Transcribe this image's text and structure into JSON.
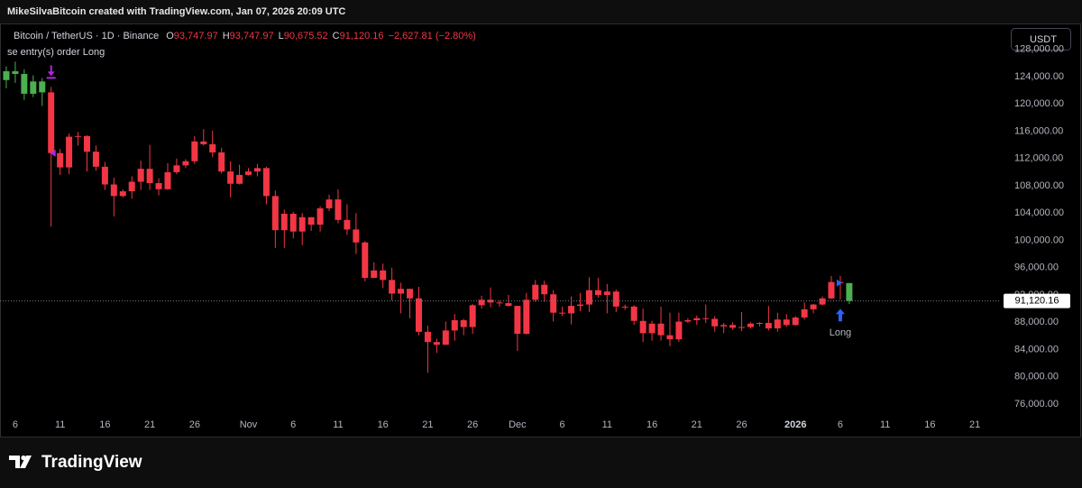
{
  "chart_data": {
    "type": "candlestick",
    "author_line": "MikeSilvaBitcoin created with TradingView.com, Jan 07, 2026 20:09 UTC",
    "header": {
      "symbol": "Bitcoin / TetherUS · 1D · Binance",
      "ohlc": [
        {
          "key": "O",
          "value": "93,747.97"
        },
        {
          "key": "H",
          "value": "93,747.97"
        },
        {
          "key": "L",
          "value": "90,675.52"
        },
        {
          "key": "C",
          "value": "91,120.16"
        }
      ],
      "change": "−2,627.81 (−2.80%)"
    },
    "strategy_text": "se entry(s) order Long",
    "signal_label": "Long",
    "currency": "USDT",
    "brand": "TradingView",
    "categories": [
      null,
      "6",
      null,
      null,
      null,
      null,
      "11",
      null,
      null,
      null,
      null,
      "16",
      null,
      null,
      null,
      null,
      "21",
      null,
      null,
      null,
      null,
      "26",
      null,
      null,
      null,
      null,
      null,
      "Nov",
      null,
      null,
      null,
      null,
      "6",
      null,
      null,
      null,
      null,
      "11",
      null,
      null,
      null,
      null,
      "16",
      null,
      null,
      null,
      null,
      "21",
      null,
      null,
      null,
      null,
      "26",
      null,
      null,
      null,
      null,
      "Dec",
      null,
      null,
      null,
      null,
      "6",
      null,
      null,
      null,
      null,
      "11",
      null,
      null,
      null,
      null,
      "16",
      null,
      null,
      null,
      null,
      "21",
      null,
      null,
      null,
      null,
      "26",
      null,
      null,
      null,
      null,
      null,
      "2026",
      null,
      null,
      null,
      null,
      "6",
      null,
      null,
      null,
      null,
      "11",
      null,
      null,
      null,
      null,
      "16",
      null,
      null,
      null,
      null,
      "21",
      null,
      null
    ],
    "open": [
      123500,
      124800,
      124400,
      121500,
      123300,
      121700,
      112800,
      110700,
      115200,
      115300,
      113000,
      110800,
      108200,
      106500,
      107200,
      108600,
      110500,
      108400,
      107500,
      110000,
      111000,
      111600,
      114500,
      114100,
      112900,
      110100,
      108300,
      109600,
      110100,
      110600,
      106500,
      101500,
      103900,
      101300,
      103400,
      102300,
      104700,
      106000,
      103000,
      101600,
      99700,
      94500,
      95600,
      94200,
      92200,
      92900,
      91500,
      86600,
      85100,
      84700,
      86800,
      88300,
      87300,
      90500,
      91300,
      90900,
      90800,
      90400,
      86300,
      91300,
      93500,
      92100,
      89400,
      89300,
      90400,
      90600,
      92700,
      92000,
      92500,
      90300,
      90300,
      88200,
      86400,
      87800,
      86100,
      85500,
      88100,
      88300,
      88600,
      88500,
      87400,
      87600,
      87200,
      87300,
      87800,
      87900,
      87100,
      88400,
      87600,
      88700,
      89900,
      90600,
      91500,
      93900,
      93747.97,
      null,
      null,
      null,
      null,
      null,
      null,
      null,
      null,
      null,
      null,
      null,
      null,
      null,
      null,
      null,
      null
    ],
    "high": [
      125500,
      126200,
      125100,
      124200,
      123800,
      122500,
      113400,
      115700,
      115900,
      115400,
      113900,
      111500,
      109200,
      107500,
      109400,
      111700,
      114000,
      109100,
      111300,
      112000,
      111900,
      115300,
      116300,
      116100,
      113600,
      111600,
      111100,
      110600,
      111200,
      110800,
      107300,
      104500,
      104200,
      104000,
      103400,
      105000,
      106700,
      107500,
      105300,
      104000,
      99900,
      96800,
      96600,
      96000,
      93800,
      92900,
      93200,
      87500,
      85600,
      88100,
      89200,
      88500,
      90700,
      91900,
      93100,
      91200,
      92000,
      90400,
      92300,
      94200,
      94100,
      92700,
      90300,
      91800,
      92300,
      94600,
      94500,
      93600,
      92800,
      90600,
      90500,
      90000,
      88200,
      90300,
      89400,
      89400,
      88600,
      89000,
      90600,
      88900,
      87900,
      88000,
      89500,
      88000,
      88000,
      90400,
      89400,
      89200,
      88900,
      90900,
      90700,
      91800,
      94800,
      94800,
      93747.97,
      null,
      null,
      null,
      null,
      null,
      null,
      null,
      null,
      null,
      null,
      null,
      null,
      null,
      null,
      null,
      null
    ],
    "low": [
      122300,
      123100,
      120600,
      121000,
      119700,
      102000,
      109600,
      109700,
      113900,
      110100,
      110200,
      107400,
      103500,
      106300,
      106100,
      107400,
      107400,
      106600,
      107400,
      109700,
      110600,
      111200,
      113900,
      112200,
      109800,
      106300,
      108200,
      109500,
      109400,
      105300,
      98900,
      98900,
      100300,
      99300,
      101400,
      101300,
      104300,
      102500,
      100800,
      98000,
      94000,
      94500,
      93000,
      91200,
      89300,
      88600,
      86100,
      80600,
      83500,
      84700,
      85300,
      86100,
      86300,
      90000,
      90200,
      90300,
      90300,
      83800,
      86200,
      91000,
      91000,
      88100,
      88900,
      87700,
      89600,
      89500,
      91600,
      89300,
      89500,
      89800,
      87600,
      85100,
      85300,
      85300,
      84500,
      85100,
      87900,
      87600,
      87900,
      86600,
      86400,
      86900,
      86700,
      87100,
      87400,
      86800,
      86600,
      87300,
      87500,
      88400,
      89300,
      90500,
      91400,
      91300,
      90675.52,
      null,
      null,
      null,
      null,
      null,
      null,
      null,
      null,
      null,
      null,
      null,
      null,
      null,
      null,
      null,
      null
    ],
    "close": [
      124800,
      124400,
      121500,
      123300,
      121700,
      112800,
      110700,
      115200,
      115300,
      113000,
      110800,
      108200,
      106500,
      107200,
      108600,
      110500,
      108400,
      107500,
      110000,
      111000,
      111600,
      114500,
      114100,
      112900,
      110100,
      108300,
      109600,
      110100,
      110600,
      106500,
      101500,
      103900,
      101300,
      103400,
      102300,
      104700,
      106000,
      103000,
      101600,
      99700,
      94500,
      95600,
      94200,
      92200,
      92900,
      91500,
      86600,
      85100,
      84700,
      86800,
      88300,
      87300,
      90500,
      91300,
      90900,
      90800,
      90400,
      86300,
      91300,
      93500,
      92100,
      89400,
      89300,
      90400,
      90600,
      92700,
      92000,
      92500,
      90300,
      90300,
      88200,
      86400,
      87800,
      86100,
      85500,
      88100,
      88300,
      88600,
      88500,
      87400,
      87600,
      87200,
      87300,
      87800,
      87900,
      87100,
      88400,
      87600,
      88700,
      89900,
      90600,
      91500,
      93900,
      93747.97,
      91120.16,
      null,
      null,
      null,
      null,
      null,
      null,
      null,
      null,
      null,
      null,
      null,
      null,
      null,
      null,
      null,
      null
    ],
    "colors": [
      "#4caf50",
      "#4caf50",
      "#4caf50",
      "#4caf50",
      "#4caf50",
      "#f23645",
      "#f23645",
      "#f23645",
      "#f23645",
      "#f23645",
      "#f23645",
      "#f23645",
      "#f23645",
      "#f23645",
      "#f23645",
      "#f23645",
      "#f23645",
      "#f23645",
      "#f23645",
      "#f23645",
      "#f23645",
      "#f23645",
      "#f23645",
      "#f23645",
      "#f23645",
      "#f23645",
      "#f23645",
      "#f23645",
      "#f23645",
      "#f23645",
      "#f23645",
      "#f23645",
      "#f23645",
      "#f23645",
      "#f23645",
      "#f23645",
      "#f23645",
      "#f23645",
      "#f23645",
      "#f23645",
      "#f23645",
      "#f23645",
      "#f23645",
      "#f23645",
      "#f23645",
      "#f23645",
      "#f23645",
      "#f23645",
      "#f23645",
      "#f23645",
      "#f23645",
      "#f23645",
      "#f23645",
      "#f23645",
      "#f23645",
      "#f23645",
      "#f23645",
      "#f23645",
      "#f23645",
      "#f23645",
      "#f23645",
      "#f23645",
      "#f23645",
      "#f23645",
      "#f23645",
      "#f23645",
      "#f23645",
      "#f23645",
      "#f23645",
      "#f23645",
      "#f23645",
      "#f23645",
      "#f23645",
      "#f23645",
      "#f23645",
      "#f23645",
      "#f23645",
      "#f23645",
      "#f23645",
      "#f23645",
      "#f23645",
      "#f23645",
      "#f23645",
      "#f23645",
      "#f23645",
      "#f23645",
      "#f23645",
      "#f23645",
      "#f23645",
      "#f23645",
      "#f23645",
      "#f23645",
      "#f23645",
      "#f23645",
      "#4caf50",
      null,
      null,
      null,
      null,
      null,
      null,
      null,
      null,
      null,
      null,
      null,
      null,
      null,
      null,
      null,
      null
    ],
    "last_price": {
      "value": 91120.16,
      "label": "91,120.16"
    },
    "ylim": [
      74680,
      131670
    ],
    "yticks": [
      {
        "value": 76000,
        "label": "76,000.00"
      },
      {
        "value": 80000,
        "label": "80,000.00"
      },
      {
        "value": 84000,
        "label": "84,000.00"
      },
      {
        "value": 88000,
        "label": "88,000.00"
      },
      {
        "value": 92000,
        "label": "92,000.00"
      },
      {
        "value": 96000,
        "label": "96,000.00"
      },
      {
        "value": 100000,
        "label": "100,000.00"
      },
      {
        "value": 104000,
        "label": "104,000.00"
      },
      {
        "value": 108000,
        "label": "108,000.00"
      },
      {
        "value": 112000,
        "label": "112,000.00"
      },
      {
        "value": 116000,
        "label": "116,000.00"
      },
      {
        "value": 120000,
        "label": "120,000.00"
      },
      {
        "value": 124000,
        "label": "124,000.00"
      },
      {
        "value": 128000,
        "label": "128,000.00"
      }
    ]
  }
}
